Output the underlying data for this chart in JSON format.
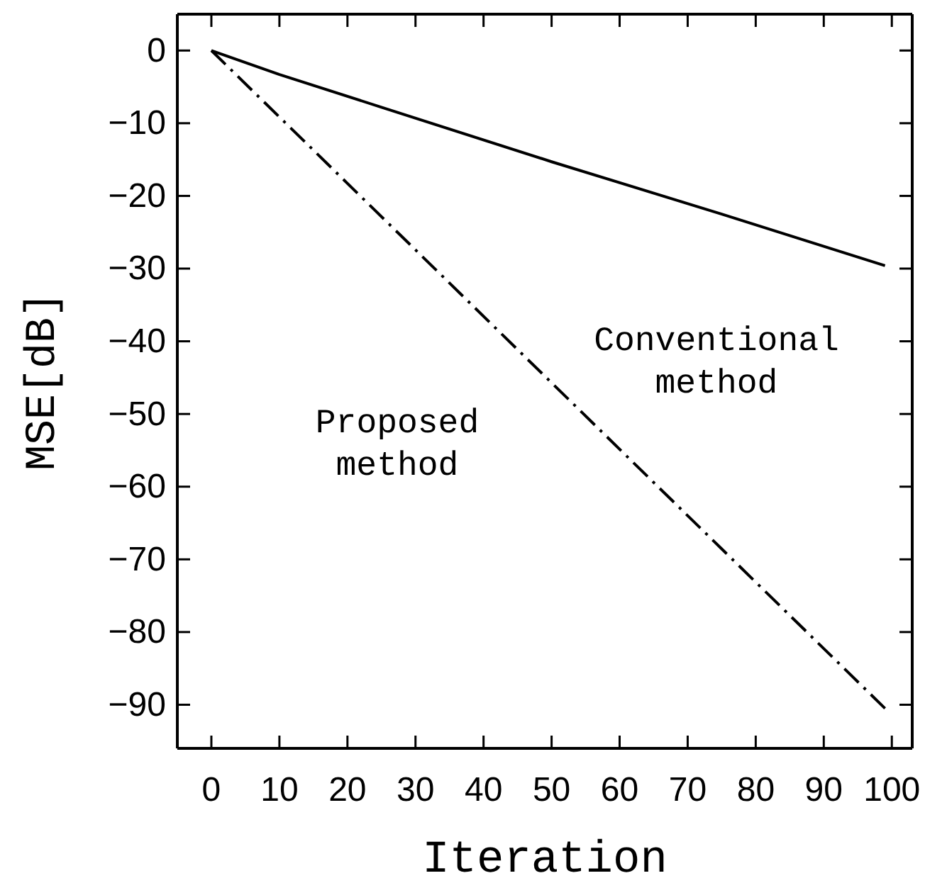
{
  "chart_data": {
    "type": "line",
    "xlabel": "Iteration",
    "ylabel": "MSE[dB]",
    "xlim": [
      -5,
      103
    ],
    "ylim": [
      -96,
      5
    ],
    "xticks": [
      0,
      10,
      20,
      30,
      40,
      50,
      60,
      70,
      80,
      90,
      100
    ],
    "yticks": [
      0,
      -10,
      -20,
      -30,
      -40,
      -50,
      -60,
      -70,
      -80,
      -90
    ],
    "series": [
      {
        "name": "Conventional method",
        "color": "#000000",
        "line_style": "solid",
        "x": [
          0,
          10,
          25,
          50,
          75,
          99
        ],
        "values": [
          0,
          -3.3,
          -7.8,
          -15.3,
          -22.5,
          -29.6
        ]
      },
      {
        "name": "Proposed method",
        "color": "#000000",
        "line_style": "dashed",
        "x": [
          0,
          99
        ],
        "values": [
          0,
          -90.5
        ]
      }
    ]
  }
}
